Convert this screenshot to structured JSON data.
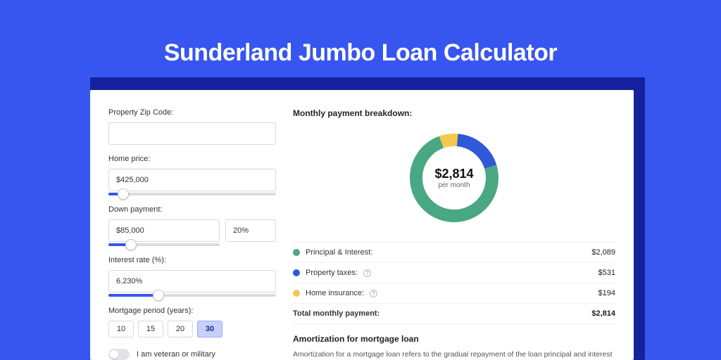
{
  "page": {
    "title": "Sunderland Jumbo Loan Calculator",
    "background_color": "#3755ef",
    "shadow_color": "#15229e",
    "card_bg": "#ffffff"
  },
  "form": {
    "zip": {
      "label": "Property Zip Code:",
      "value": ""
    },
    "home_price": {
      "label": "Home price:",
      "value": "$425,000",
      "slider_fill_pct": 9
    },
    "down": {
      "label": "Down payment:",
      "amount": "$85,000",
      "percent": "20%",
      "slider_fill_pct": 20
    },
    "rate": {
      "label": "Interest rate (%):",
      "value": "6.230%",
      "slider_fill_pct": 30
    },
    "period": {
      "label": "Mortgage period (years):",
      "options": [
        "10",
        "15",
        "20",
        "30"
      ],
      "selected_index": 3
    },
    "veteran": {
      "label": "I am veteran or military",
      "checked": false
    }
  },
  "breakdown": {
    "title": "Monthly payment breakdown:",
    "chart": {
      "type": "donut",
      "total_label": "$2,814",
      "total_sub": "per month",
      "thickness": 18,
      "radius": 63,
      "colors": {
        "principal": "#4aa784",
        "taxes": "#2f59d8",
        "insurance": "#f3c94c"
      },
      "values": {
        "principal": 2089,
        "taxes": 531,
        "insurance": 194
      },
      "angles_deg": {
        "principal": 267,
        "taxes": 68,
        "insurance": 25
      }
    },
    "legend": [
      {
        "key": "principal",
        "label": "Principal & Interest:",
        "value": "$2,089",
        "color": "#4aa784",
        "info": false
      },
      {
        "key": "taxes",
        "label": "Property taxes:",
        "value": "$531",
        "color": "#2f59d8",
        "info": true
      },
      {
        "key": "insurance",
        "label": "Home insurance:",
        "value": "$194",
        "color": "#f3c94c",
        "info": true
      }
    ],
    "total_row": {
      "label": "Total monthly payment:",
      "value": "$2,814"
    }
  },
  "amortization": {
    "title": "Amortization for mortgage loan",
    "body": "Amortization for a mortgage loan refers to the gradual repayment of the loan principal and interest over a specified"
  }
}
